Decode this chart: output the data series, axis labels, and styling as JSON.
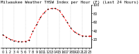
{
  "title": "Milwaukee Weather THSW Index per Hour (F) (Last 24 Hours)",
  "hours": [
    0,
    1,
    2,
    3,
    4,
    5,
    6,
    7,
    8,
    9,
    10,
    11,
    12,
    13,
    14,
    15,
    16,
    17,
    18,
    19,
    20,
    21,
    22,
    23
  ],
  "values": [
    30,
    25,
    20,
    17,
    15,
    14,
    15,
    18,
    38,
    54,
    70,
    82,
    89,
    91,
    91,
    86,
    74,
    60,
    46,
    37,
    32,
    28,
    27,
    27
  ],
  "xlabels": [
    "0",
    "1",
    "2",
    "3",
    "4",
    "5",
    "6",
    "7",
    "8",
    "9",
    "10",
    "11",
    "12",
    "13",
    "14",
    "15",
    "16",
    "17",
    "18",
    "19",
    "20",
    "21",
    "22",
    "23"
  ],
  "ylim": [
    0,
    100
  ],
  "yticks": [
    20,
    40,
    60,
    80,
    100
  ],
  "ytick_labels": [
    "20",
    "40",
    "60",
    "80",
    "100"
  ],
  "grid_hours": [
    0,
    3,
    6,
    9,
    12,
    15,
    18,
    21
  ],
  "line_color": "#ff0000",
  "marker_color": "#000000",
  "bg_color": "#ffffff",
  "grid_color": "#bbbbbb",
  "title_fontsize": 4.2,
  "tick_fontsize": 3.5,
  "last_value": 27,
  "marker_size": 1.8,
  "line_width": 0.7
}
